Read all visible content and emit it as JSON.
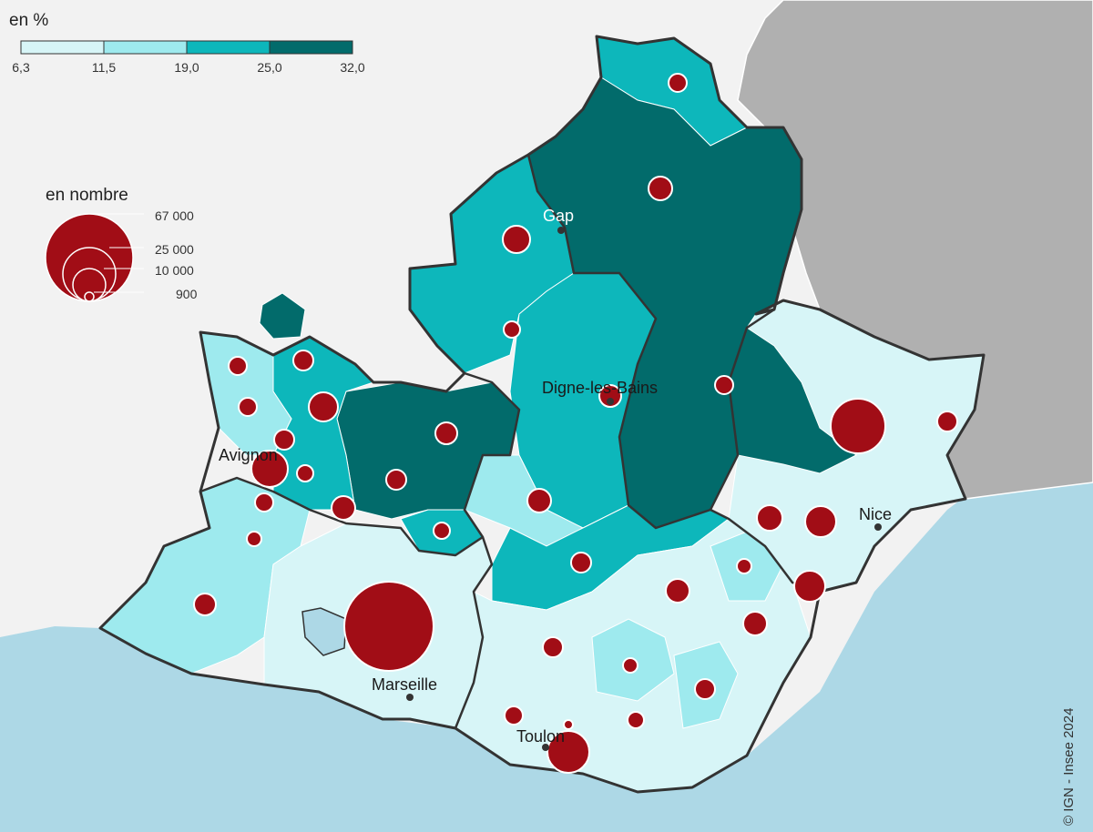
{
  "legend_percent": {
    "title": "en %",
    "breaks": [
      "6,3",
      "11,5",
      "19,0",
      "25,0",
      "32,0"
    ],
    "colors": [
      "#d7f5f7",
      "#9eeaee",
      "#0db7bb",
      "#026b6b"
    ]
  },
  "legend_count": {
    "title": "en nombre",
    "values": [
      "67 000",
      "25 000",
      "10 000",
      "900"
    ],
    "circle_color": "#a10d16"
  },
  "cities": [
    {
      "name": "Gap"
    },
    {
      "name": "Digne-les-Bains"
    },
    {
      "name": "Avignon"
    },
    {
      "name": "Nice"
    },
    {
      "name": "Marseille"
    },
    {
      "name": "Toulon"
    }
  ],
  "copyright": "© IGN - Insee 2024",
  "colors": {
    "sea": "#add8e6",
    "foreign_land": "#b0b0b0",
    "outside_land": "#f2f2f2",
    "border": "#333333",
    "proportional_circle": "#a10d16"
  }
}
